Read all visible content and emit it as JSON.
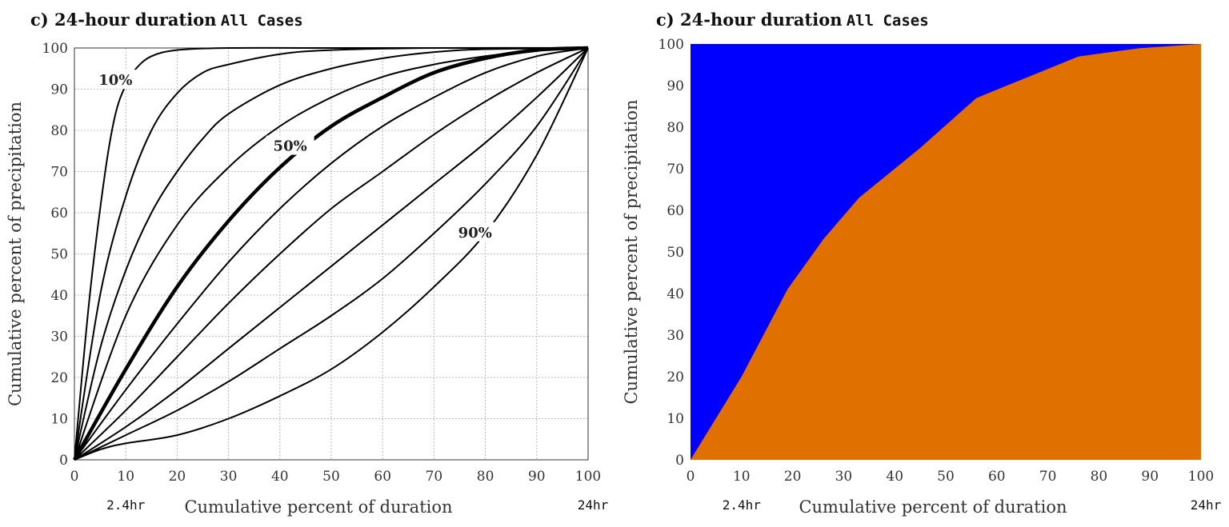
{
  "chart_data": [
    {
      "type": "line",
      "title": "c) 24-hour duration",
      "title_suffix": "All Cases",
      "xlabel": "Cumulative percent of duration",
      "ylabel": "Cumulative percent of precipitation",
      "xlim": [
        0,
        100
      ],
      "ylim": [
        0,
        100
      ],
      "xticks": [
        0,
        10,
        20,
        30,
        40,
        50,
        60,
        70,
        80,
        90,
        100
      ],
      "yticks": [
        0,
        10,
        20,
        30,
        40,
        50,
        60,
        70,
        80,
        90,
        100
      ],
      "grid": true,
      "extra_tick_labels": [
        {
          "x": 10,
          "label": "2.4hr"
        },
        {
          "x": 100,
          "label": "24hr"
        }
      ],
      "annotations": [
        "10%",
        "50%",
        "90%"
      ],
      "series": [
        {
          "x": [
            0,
            3,
            6,
            8,
            10,
            12,
            15,
            20,
            30,
            50,
            100
          ],
          "values": [
            0,
            40,
            70,
            84,
            91,
            95,
            98,
            99.5,
            100,
            100,
            100
          ]
        },
        {
          "x": [
            0,
            5,
            10,
            15,
            20,
            25,
            30,
            40,
            50,
            70,
            100
          ],
          "values": [
            0,
            40,
            64,
            80,
            89,
            94,
            96,
            98.5,
            99.5,
            100,
            100
          ]
        },
        {
          "x": [
            0,
            5,
            10,
            15,
            20,
            25,
            30,
            40,
            50,
            60,
            70,
            80,
            100
          ],
          "values": [
            0,
            27,
            46,
            60,
            70,
            78,
            84,
            91,
            95,
            97.5,
            99,
            99.7,
            100
          ]
        },
        {
          "x": [
            0,
            10,
            20,
            30,
            40,
            50,
            60,
            70,
            80,
            90,
            100
          ],
          "values": [
            0,
            35,
            57,
            71,
            81,
            88,
            93,
            96,
            98,
            99.5,
            100
          ]
        },
        {
          "x": [
            0,
            10,
            20,
            30,
            40,
            50,
            60,
            70,
            80,
            90,
            100
          ],
          "values": [
            0,
            22,
            42,
            58,
            71,
            81,
            88,
            94,
            97.5,
            99.5,
            100
          ]
        },
        {
          "x": [
            0,
            10,
            20,
            30,
            40,
            50,
            60,
            70,
            80,
            90,
            100
          ],
          "values": [
            0,
            17,
            33,
            48,
            61,
            72,
            81,
            88,
            94,
            98,
            100
          ]
        },
        {
          "x": [
            0,
            10,
            20,
            30,
            40,
            50,
            60,
            70,
            80,
            90,
            100
          ],
          "values": [
            0,
            12,
            25,
            38,
            50,
            61,
            70,
            79,
            87,
            94,
            100
          ]
        },
        {
          "x": [
            0,
            10,
            20,
            30,
            40,
            50,
            60,
            70,
            80,
            90,
            100
          ],
          "values": [
            0,
            8,
            17,
            27,
            37,
            47,
            57,
            67,
            77,
            88,
            100
          ]
        },
        {
          "x": [
            0,
            10,
            20,
            30,
            40,
            50,
            60,
            70,
            80,
            90,
            100
          ],
          "values": [
            0,
            6,
            12,
            19,
            27,
            35,
            44,
            55,
            67,
            81,
            100
          ]
        },
        {
          "x": [
            0,
            5,
            10,
            20,
            30,
            40,
            50,
            60,
            70,
            80,
            90,
            100
          ],
          "values": [
            0,
            2.5,
            4,
            6,
            10,
            15.5,
            22,
            31,
            42,
            55,
            74,
            100
          ]
        }
      ]
    },
    {
      "type": "area",
      "title": "c) 24-hour duration",
      "title_suffix": "All Cases",
      "xlabel": "Cumulative percent of duration",
      "ylabel": "Cumulative percent of precipitation",
      "xlim": [
        0,
        100
      ],
      "ylim": [
        0,
        100
      ],
      "xticks": [
        0,
        10,
        20,
        30,
        40,
        50,
        60,
        70,
        80,
        90,
        100
      ],
      "yticks": [
        0,
        10,
        20,
        30,
        40,
        50,
        60,
        70,
        80,
        90,
        100
      ],
      "grid": false,
      "extra_tick_labels": [
        {
          "x": 10,
          "label": "2.4hr"
        },
        {
          "x": 100,
          "label": "24hr"
        }
      ],
      "colors": {
        "above": "#0000ff",
        "below": "#e07000"
      },
      "series": [
        {
          "x": [
            0,
            5,
            10,
            19,
            26,
            33,
            45,
            56,
            66,
            76,
            88,
            100
          ],
          "values": [
            0,
            10,
            20,
            41,
            53,
            63,
            75,
            87,
            92,
            97,
            99,
            100
          ]
        }
      ]
    }
  ]
}
